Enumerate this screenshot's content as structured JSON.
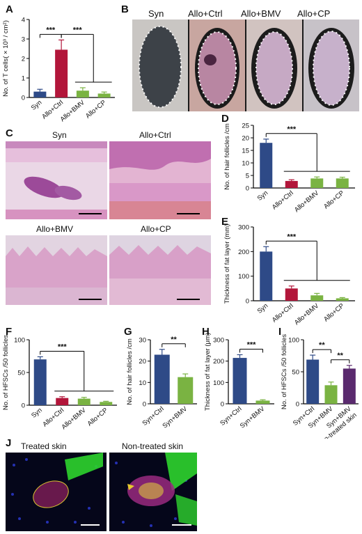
{
  "panel_labels": [
    "A",
    "B",
    "C",
    "D",
    "E",
    "F",
    "G",
    "H",
    "I",
    "J"
  ],
  "panel_b": {
    "labels": [
      "Syn",
      "Allo+Ctrl",
      "Allo+BMV",
      "Allo+CP"
    ]
  },
  "panel_c": {
    "labels": [
      "Syn",
      "Allo+Ctrl",
      "Allo+BMV",
      "Allo+CP"
    ]
  },
  "panel_j": {
    "labels": [
      "Treated skin",
      "Non-treated skin"
    ]
  },
  "colors": {
    "syn": "#2e4a87",
    "ctrl": "#b2163a",
    "bmv": "#7ab342",
    "cp": "#5a2a6e",
    "line": "#000000"
  },
  "chart_data": [
    {
      "id": "A",
      "type": "bar",
      "categories": [
        "Syn",
        "Allo+Ctrl",
        "Allo+BMV",
        "Allo+CP"
      ],
      "values": [
        0.3,
        2.45,
        0.35,
        0.2
      ],
      "errors": [
        0.12,
        0.5,
        0.15,
        0.08
      ],
      "colors": [
        "#2e4a87",
        "#b2163a",
        "#7ab342",
        "#7ab342"
      ],
      "ylabel": "No. of T cells( × 10³ / cm²)",
      "ylim": [
        0,
        4
      ],
      "yticks": [
        "0",
        "1",
        "2",
        "3",
        "4"
      ],
      "significance": [
        {
          "label": "***",
          "type": "pair",
          "from": 0,
          "to": 1
        },
        {
          "label": "***",
          "type": "group",
          "from": 1,
          "to": [
            2,
            3
          ]
        }
      ]
    },
    {
      "id": "D",
      "type": "bar",
      "categories": [
        "Syn",
        "Allo+Ctrl",
        "Allo+BMV",
        "Allo+CP"
      ],
      "values": [
        18,
        2.8,
        3.8,
        3.8
      ],
      "errors": [
        1.5,
        0.5,
        0.6,
        0.5
      ],
      "colors": [
        "#2e4a87",
        "#b2163a",
        "#7ab342",
        "#7ab342"
      ],
      "ylabel": "No. of hair follicles /cm",
      "ylim": [
        0,
        25
      ],
      "yticks": [
        "0",
        "5",
        "10",
        "15",
        "20",
        "25"
      ],
      "significance": [
        {
          "label": "***",
          "type": "group",
          "from": 0,
          "to": [
            1,
            2,
            3
          ]
        }
      ]
    },
    {
      "id": "E",
      "type": "bar",
      "categories": [
        "Syn",
        "Allo+Ctrl",
        "Allo+BMV",
        "Allo+CP"
      ],
      "values": [
        200,
        50,
        22,
        10
      ],
      "errors": [
        20,
        10,
        8,
        3
      ],
      "colors": [
        "#2e4a87",
        "#b2163a",
        "#7ab342",
        "#7ab342"
      ],
      "ylabel": "Thickness of fat layer (mm)",
      "ylim": [
        0,
        300
      ],
      "yticks": [
        "0",
        "100",
        "200",
        "300"
      ],
      "significance": [
        {
          "label": "***",
          "type": "group",
          "from": 0,
          "to": [
            1,
            2,
            3
          ]
        }
      ]
    },
    {
      "id": "F",
      "type": "bar",
      "categories": [
        "Syn",
        "Allo+Ctrl",
        "Allo+BMV",
        "Allo+CP"
      ],
      "values": [
        70,
        11,
        10,
        5
      ],
      "errors": [
        4,
        2,
        2,
        1
      ],
      "colors": [
        "#2e4a87",
        "#b2163a",
        "#7ab342",
        "#7ab342"
      ],
      "ylabel": "No. of HFSCs /50 follicles",
      "ylim": [
        0,
        100
      ],
      "yticks": [
        "0",
        "50",
        "100"
      ],
      "significance": [
        {
          "label": "***",
          "type": "group",
          "from": 0,
          "to": [
            1,
            2,
            3
          ]
        }
      ]
    },
    {
      "id": "G",
      "type": "bar",
      "categories": [
        "Syn+Ctrl",
        "Syn+BMV"
      ],
      "values": [
        23,
        12.5
      ],
      "errors": [
        2.5,
        1.5
      ],
      "colors": [
        "#2e4a87",
        "#7ab342"
      ],
      "ylabel": "No. of hair follicles /cm",
      "ylim": [
        0,
        30
      ],
      "yticks": [
        "0",
        "10",
        "20",
        "30"
      ],
      "significance": [
        {
          "label": "**",
          "type": "pair",
          "from": 0,
          "to": 1
        }
      ]
    },
    {
      "id": "H",
      "type": "bar",
      "categories": [
        "Syn+Ctrl",
        "Syn+BMV"
      ],
      "values": [
        215,
        15
      ],
      "errors": [
        15,
        4
      ],
      "colors": [
        "#2e4a87",
        "#7ab342"
      ],
      "ylabel": "Thickness of fat layer (μm)",
      "ylim": [
        0,
        300
      ],
      "yticks": [
        "0",
        "100",
        "200",
        "300"
      ],
      "significance": [
        {
          "label": "***",
          "type": "pair",
          "from": 0,
          "to": 1
        }
      ]
    },
    {
      "id": "I",
      "type": "bar",
      "categories": [
        "Syn+Ctrl",
        "Syn+BMV",
        "Syn+BMV non-treated skin"
      ],
      "values": [
        69,
        29,
        55
      ],
      "errors": [
        7,
        5,
        5
      ],
      "colors": [
        "#2e4a87",
        "#7ab342",
        "#5a2a6e"
      ],
      "ylabel": "No. of HFSCs /50 follicles",
      "ylim": [
        0,
        100
      ],
      "yticks": [
        "0",
        "50",
        "100"
      ],
      "significance": [
        {
          "label": "**",
          "type": "pair",
          "from": 0,
          "to": 1
        },
        {
          "label": "**",
          "type": "pair",
          "from": 1,
          "to": 2
        }
      ]
    }
  ]
}
